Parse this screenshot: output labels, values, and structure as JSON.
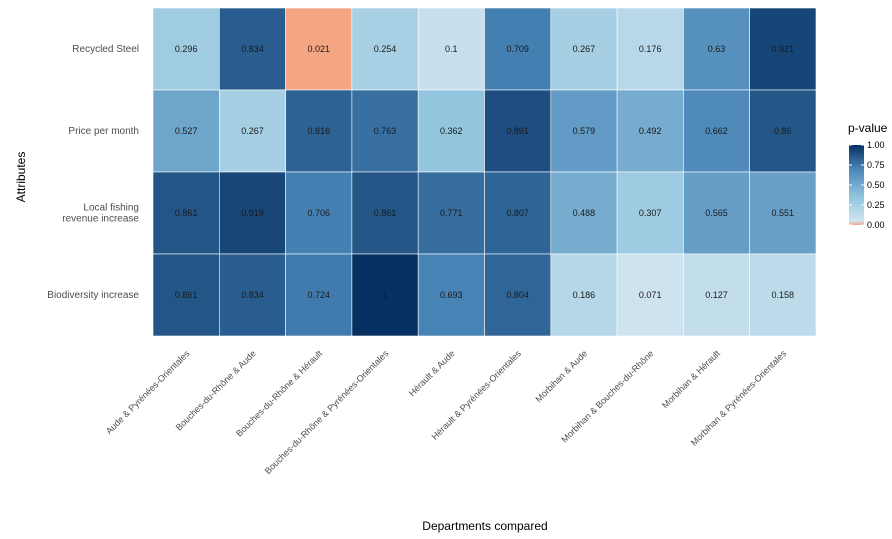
{
  "chart_data": {
    "type": "heatmap",
    "xlabel": "Departments compared",
    "ylabel": "Attributes",
    "legend": {
      "title": "p-value",
      "ticks": [
        "1.00",
        "0.75",
        "0.50",
        "0.25",
        "0.00"
      ],
      "position": "right"
    },
    "columns": [
      "Aude & Pyrénées-Orientales",
      "Bouches-du-Rhône & Aude",
      "Bouches-du-Rhône & Hérault",
      "Bouches-du-Rhône & Pyrénées-Orientales",
      "Hérault & Aude",
      "Hérault & Pyrénées-Orientales",
      "Morbihan & Aude",
      "Morbihan & Bouches-du-Rhône",
      "Morbihan & Hérault",
      "Morbihan & Pyrénées-Orientales"
    ],
    "rows": [
      "Recycled Steel",
      "Price per month",
      "Local fishing revenue increase",
      "Biodiversity increase"
    ],
    "values": [
      [
        0.296,
        0.834,
        0.021,
        0.254,
        0.1,
        0.709,
        0.267,
        0.176,
        0.63,
        0.921
      ],
      [
        0.527,
        0.267,
        0.816,
        0.763,
        0.362,
        0.891,
        0.579,
        0.492,
        0.662,
        0.86
      ],
      [
        0.861,
        0.919,
        0.706,
        0.861,
        0.771,
        0.807,
        0.488,
        0.307,
        0.565,
        0.551
      ],
      [
        0.861,
        0.834,
        0.724,
        1,
        0.693,
        0.804,
        0.186,
        0.071,
        0.127,
        0.158
      ]
    ],
    "labels": [
      [
        "0.296",
        "0.834",
        "0.021",
        "0.254",
        "0.1",
        "0.709",
        "0.267",
        "0.176",
        "0.63",
        "0.921"
      ],
      [
        "0.527",
        "0.267",
        "0.816",
        "0.763",
        "0.362",
        "0.891",
        "0.579",
        "0.492",
        "0.662",
        "0.86"
      ],
      [
        "0.861",
        "0.919",
        "0.706",
        "0.861",
        "0.771",
        "0.807",
        "0.488",
        "0.307",
        "0.565",
        "0.551"
      ],
      [
        "0.861",
        "0.834",
        "0.724",
        "1",
        "0.693",
        "0.804",
        "0.186",
        "0.071",
        "0.127",
        "0.158"
      ]
    ],
    "color_scale": {
      "low": "#f4a582",
      "threshold": 0.05,
      "high_stops": [
        "#d1e5f0",
        "#92c5de",
        "#4a86b8",
        "#053061"
      ]
    },
    "grid": false
  }
}
